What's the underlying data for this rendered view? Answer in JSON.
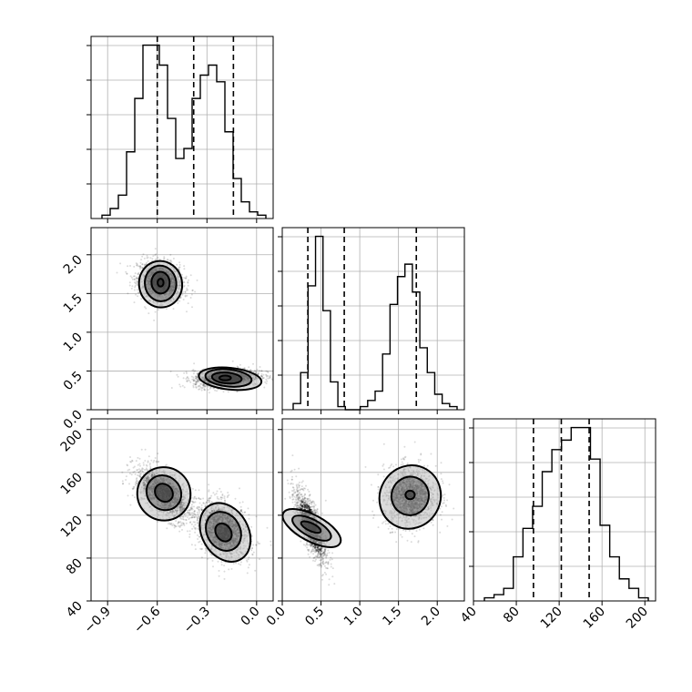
{
  "chart_data": {
    "type": "corner",
    "title": "",
    "grid": true,
    "parameters": [
      {
        "ticks": [
          -0.9,
          -0.6,
          -0.3,
          0.0
        ],
        "tick_labels": [
          "−0.9",
          "−0.6",
          "−0.3",
          "0.0"
        ],
        "range": [
          -1.0,
          0.1
        ],
        "quantiles": [
          -0.6,
          -0.38,
          -0.14
        ],
        "histogram": [
          1,
          3,
          7,
          20,
          36,
          52,
          52,
          46,
          30,
          18,
          21,
          36,
          43,
          46,
          41,
          26,
          12,
          5,
          2,
          1
        ],
        "histogram_ticks": [
          0.2,
          0.4,
          0.6,
          0.8,
          1.0
        ],
        "histogram_max": 1.0
      },
      {
        "ticks": [
          0.0,
          0.5,
          1.0,
          1.5,
          2.0
        ],
        "tick_labels": [
          "0.0",
          "0.5",
          "1.0",
          "1.5",
          "2.0"
        ],
        "range": [
          0.0,
          2.35
        ],
        "quantiles": [
          0.33,
          0.8,
          1.73
        ],
        "histogram": [
          2,
          12,
          40,
          56,
          32,
          9,
          1,
          0,
          0,
          1,
          3,
          6,
          18,
          34,
          43,
          47,
          38,
          20,
          12,
          5,
          2,
          1
        ],
        "histogram_ticks": [
          0.2,
          0.4,
          0.6,
          0.8,
          1.0
        ],
        "histogram_max": 1.0
      },
      {
        "ticks": [
          40,
          80,
          120,
          160,
          200
        ],
        "tick_labels": [
          "40",
          "80",
          "120",
          "160",
          "200"
        ],
        "range": [
          40,
          210
        ],
        "quantiles": [
          96,
          122,
          148
        ],
        "histogram": [
          1,
          2,
          4,
          14,
          23,
          30,
          41,
          48,
          51,
          55,
          55,
          45,
          24,
          14,
          7,
          4,
          1
        ],
        "histogram_ticks": [
          0.2,
          0.4,
          0.6,
          0.8,
          1.0
        ],
        "histogram_max": 1.0
      }
    ],
    "scatter": [
      {
        "panel": "param0-vs-param1",
        "x_param": 0,
        "y_param": 1,
        "clusters": [
          {
            "center": [
              -0.58,
              1.65
            ],
            "spread": [
              0.07,
              0.13
            ],
            "corr": -0.2,
            "contours": [
              [
                -0.58,
                1.64,
                0.018,
                0.05,
                0
              ],
              [
                -0.58,
                1.64,
                0.055,
                0.14,
                -4
              ],
              [
                -0.58,
                1.63,
                0.095,
                0.23,
                -8
              ],
              [
                -0.58,
                1.62,
                0.13,
                0.3,
                -10
              ]
            ]
          },
          {
            "center": [
              -0.18,
              0.41
            ],
            "spread": [
              0.1,
              0.06
            ],
            "corr": 0.2,
            "contours": [
              [
                -0.19,
                0.41,
                0.035,
                0.03,
                0
              ],
              [
                -0.18,
                0.41,
                0.09,
                0.07,
                5
              ],
              [
                -0.17,
                0.41,
                0.14,
                0.11,
                6
              ],
              [
                -0.16,
                0.4,
                0.19,
                0.14,
                6
              ]
            ]
          }
        ]
      },
      {
        "panel": "param0-vs-param2",
        "x_param": 0,
        "y_param": 2,
        "clusters": [
          {
            "center": [
              -0.56,
              140
            ],
            "spread": [
              0.09,
              13
            ],
            "corr": -0.6,
            "contours": [
              [
                -0.56,
                141,
                0.05,
                9,
                -45
              ],
              [
                -0.56,
                141,
                0.1,
                17,
                -45
              ],
              [
                -0.56,
                140,
                0.16,
                25,
                -47
              ]
            ]
          },
          {
            "center": [
              -0.2,
              106
            ],
            "spread": [
              0.08,
              14
            ],
            "corr": -0.3,
            "contours": [
              [
                -0.2,
                104,
                0.045,
                9,
                -35
              ],
              [
                -0.2,
                105,
                0.1,
                19,
                -30
              ],
              [
                -0.19,
                104,
                0.14,
                29,
                -30
              ]
            ]
          }
        ]
      },
      {
        "panel": "param1-vs-param2",
        "x_param": 1,
        "y_param": 2,
        "clusters": [
          {
            "center": [
              0.37,
              110
            ],
            "spread": [
              0.1,
              17
            ],
            "corr": -0.75,
            "contours": [
              [
                0.37,
                109,
                0.05,
                10,
                -65
              ],
              [
                0.38,
                108,
                0.11,
                20,
                -62
              ],
              [
                0.38,
                108,
                0.17,
                30,
                -62
              ]
            ]
          },
          {
            "center": [
              1.65,
              138
            ],
            "spread": [
              0.17,
              14
            ],
            "corr": 0.05,
            "contours": [
              [
                1.65,
                139,
                0.06,
                4,
                0
              ],
              [
                1.65,
                138,
                0.24,
                18,
                20
              ],
              [
                1.65,
                137,
                0.39,
                30,
                30
              ]
            ]
          }
        ]
      }
    ]
  }
}
